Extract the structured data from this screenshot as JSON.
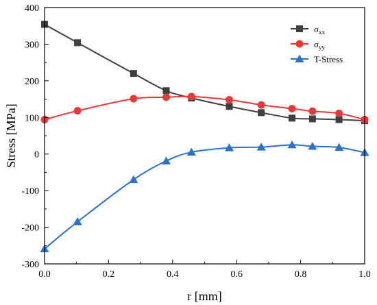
{
  "chart_data": {
    "type": "line",
    "xlabel": "r [mm]",
    "ylabel": "Stress [MPa]",
    "xlim": [
      0.0,
      1.0
    ],
    "ylim": [
      -300,
      400
    ],
    "xticks": [
      "0.0",
      "0.2",
      "0.4",
      "0.6",
      "0.8",
      "1.0"
    ],
    "yticks": [
      "-300",
      "-200",
      "-100",
      "0",
      "100",
      "200",
      "300",
      "400"
    ],
    "grid": false,
    "legend_position": "top-right",
    "series": [
      {
        "name": "σ",
        "name_sub": "xx",
        "color": "#3f3f3f",
        "marker": "square",
        "x": [
          0.0,
          0.103,
          0.278,
          0.38,
          0.459,
          0.577,
          0.677,
          0.773,
          0.837,
          0.92,
          1.0
        ],
        "y": [
          354,
          304,
          220,
          173,
          153,
          130,
          113,
          98,
          96,
          94,
          91
        ]
      },
      {
        "name": "σ",
        "name_sub": "yy",
        "color": "#e8383a",
        "marker": "circle",
        "x": [
          0.0,
          0.103,
          0.278,
          0.38,
          0.459,
          0.577,
          0.677,
          0.773,
          0.837,
          0.92,
          1.0
        ],
        "y": [
          94,
          118,
          151,
          155,
          157,
          148,
          134,
          124,
          117,
          111,
          94
        ]
      },
      {
        "name": "T-Stress",
        "name_sub": "",
        "color": "#2a72c9",
        "marker": "triangle",
        "x": [
          0.0,
          0.103,
          0.278,
          0.38,
          0.459,
          0.577,
          0.677,
          0.773,
          0.837,
          0.92,
          1.0
        ],
        "y": [
          -259,
          -185,
          -70,
          -19,
          5,
          17,
          19,
          25,
          21,
          18,
          4
        ]
      }
    ]
  }
}
